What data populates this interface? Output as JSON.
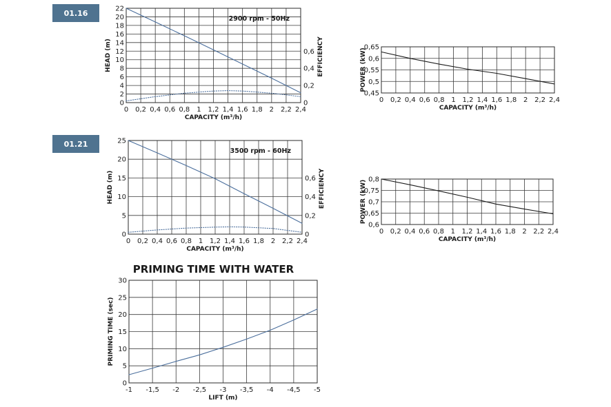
{
  "badges": [
    "01.16",
    "01.21"
  ],
  "colors": {
    "head_curve": "#4a6e9c",
    "efficiency_curve": "#4a6e9c",
    "power_curve": "#1a1a1a",
    "badge": "#4f7390"
  },
  "chart_data": [
    {
      "id": "head-0116",
      "type": "line",
      "annotation": "2900 rpm - 50Hz",
      "xlabel": "CAPACITY (m³/h)",
      "ylabel": "HEAD (m)",
      "y2label": "EFFICIENCY",
      "xlim": [
        0,
        2.4
      ],
      "ylim": [
        0,
        22
      ],
      "y2lim": [
        0,
        1.1
      ],
      "xticks": [
        "0",
        "0,2",
        "0,4",
        "0,6",
        "0,8",
        "1",
        "1,2",
        "1,4",
        "1,6",
        "1,8",
        "2",
        "2,2",
        "2,4"
      ],
      "yticks": [
        "0",
        "2",
        "4",
        "6",
        "8",
        "10",
        "12",
        "14",
        "16",
        "18",
        "20",
        "22"
      ],
      "y2ticks": [
        "0",
        "0,2",
        "0,4",
        "0,6"
      ],
      "series": [
        {
          "axis": "left",
          "style": "solid",
          "x": [
            0,
            0.4,
            0.8,
            1.2,
            1.6,
            2.0,
            2.4
          ],
          "values": [
            22,
            18.8,
            15.6,
            12.3,
            9.0,
            5.7,
            2.3
          ]
        },
        {
          "axis": "right",
          "style": "dotted",
          "x": [
            0,
            0.4,
            0.8,
            1.2,
            1.4,
            1.6,
            2.0,
            2.4
          ],
          "values": [
            0.02,
            0.07,
            0.11,
            0.135,
            0.14,
            0.135,
            0.11,
            0.07
          ]
        }
      ]
    },
    {
      "id": "power-0116",
      "type": "line",
      "xlabel": "CAPACITY (m³/h)",
      "ylabel": "POWER (kW)",
      "xlim": [
        0,
        2.4
      ],
      "ylim": [
        0.45,
        0.65
      ],
      "xticks": [
        "0",
        "0,2",
        "0,4",
        "0,6",
        "0,8",
        "1",
        "1,2",
        "1,4",
        "1,6",
        "1,8",
        "2",
        "2,2",
        "2,4"
      ],
      "yticks": [
        "0,45",
        "0,5",
        "0,55",
        "0,6",
        "0,65"
      ],
      "series": [
        {
          "style": "solid",
          "x": [
            0,
            0.4,
            0.8,
            1.2,
            1.6,
            2.0,
            2.4
          ],
          "values": [
            0.628,
            0.6,
            0.575,
            0.553,
            0.535,
            0.512,
            0.489
          ]
        }
      ]
    },
    {
      "id": "head-0121",
      "type": "line",
      "annotation": "3500 rpm - 60Hz",
      "xlabel": "CAPACITY (m³/h)",
      "ylabel": "HEAD (m)",
      "y2label": "EFFICIENCY",
      "xlim": [
        0,
        2.4
      ],
      "ylim": [
        0,
        25
      ],
      "y2lim": [
        0,
        1.0
      ],
      "xticks": [
        "0",
        "0,2",
        "0,4",
        "0,6",
        "0,8",
        "1",
        "1,2",
        "1,4",
        "1,6",
        "1,8",
        "2",
        "2,2",
        "2,4"
      ],
      "yticks": [
        "0",
        "5",
        "10",
        "15",
        "20",
        "25"
      ],
      "y2ticks": [
        "0",
        "0,2",
        "0,4",
        "0,6"
      ],
      "series": [
        {
          "axis": "left",
          "style": "solid",
          "x": [
            0,
            0.4,
            0.8,
            1.2,
            1.6,
            2.0,
            2.4
          ],
          "values": [
            25,
            21.7,
            18.3,
            14.8,
            10.8,
            6.9,
            2.9
          ]
        },
        {
          "axis": "right",
          "style": "dotted",
          "x": [
            0,
            0.4,
            0.8,
            1.2,
            1.4,
            1.6,
            2.0,
            2.4
          ],
          "values": [
            0.02,
            0.045,
            0.065,
            0.075,
            0.078,
            0.076,
            0.06,
            0.02
          ]
        }
      ]
    },
    {
      "id": "power-0121",
      "type": "line",
      "xlabel": "CAPACITY (m³/h)",
      "ylabel": "POWER (kW)",
      "xlim": [
        0,
        2.4
      ],
      "ylim": [
        0.6,
        0.8
      ],
      "xticks": [
        "0",
        "0,2",
        "0,4",
        "0,6",
        "0,8",
        "1",
        "1,2",
        "1,4",
        "1,6",
        "1,8",
        "2",
        "2,2",
        "2,4"
      ],
      "yticks": [
        "0,6",
        "0,65",
        "0,7",
        "0,75",
        "0,8"
      ],
      "series": [
        {
          "style": "solid",
          "x": [
            0,
            0.4,
            0.8,
            1.2,
            1.6,
            2.0,
            2.4
          ],
          "values": [
            0.8,
            0.775,
            0.748,
            0.72,
            0.69,
            0.668,
            0.647
          ]
        }
      ]
    },
    {
      "id": "priming",
      "type": "line",
      "title": "PRIMING TIME WITH WATER",
      "xlabel": "LIFT (m)",
      "ylabel": "PRIMING TIME (sec)",
      "xlim": [
        -1,
        -5
      ],
      "ylim": [
        0,
        30
      ],
      "xticks": [
        "-1",
        "-1,5",
        "-2",
        "-2,5",
        "-3",
        "-3,5",
        "-4",
        "-4,5",
        "-5"
      ],
      "yticks": [
        "0",
        "5",
        "10",
        "15",
        "20",
        "25",
        "30"
      ],
      "series": [
        {
          "style": "solid",
          "x": [
            -1,
            -1.5,
            -2,
            -2.5,
            -3,
            -3.5,
            -4,
            -4.5,
            -5
          ],
          "values": [
            2.4,
            4.3,
            6.3,
            8.2,
            10.4,
            12.8,
            15.4,
            18.4,
            21.6
          ]
        }
      ]
    }
  ]
}
